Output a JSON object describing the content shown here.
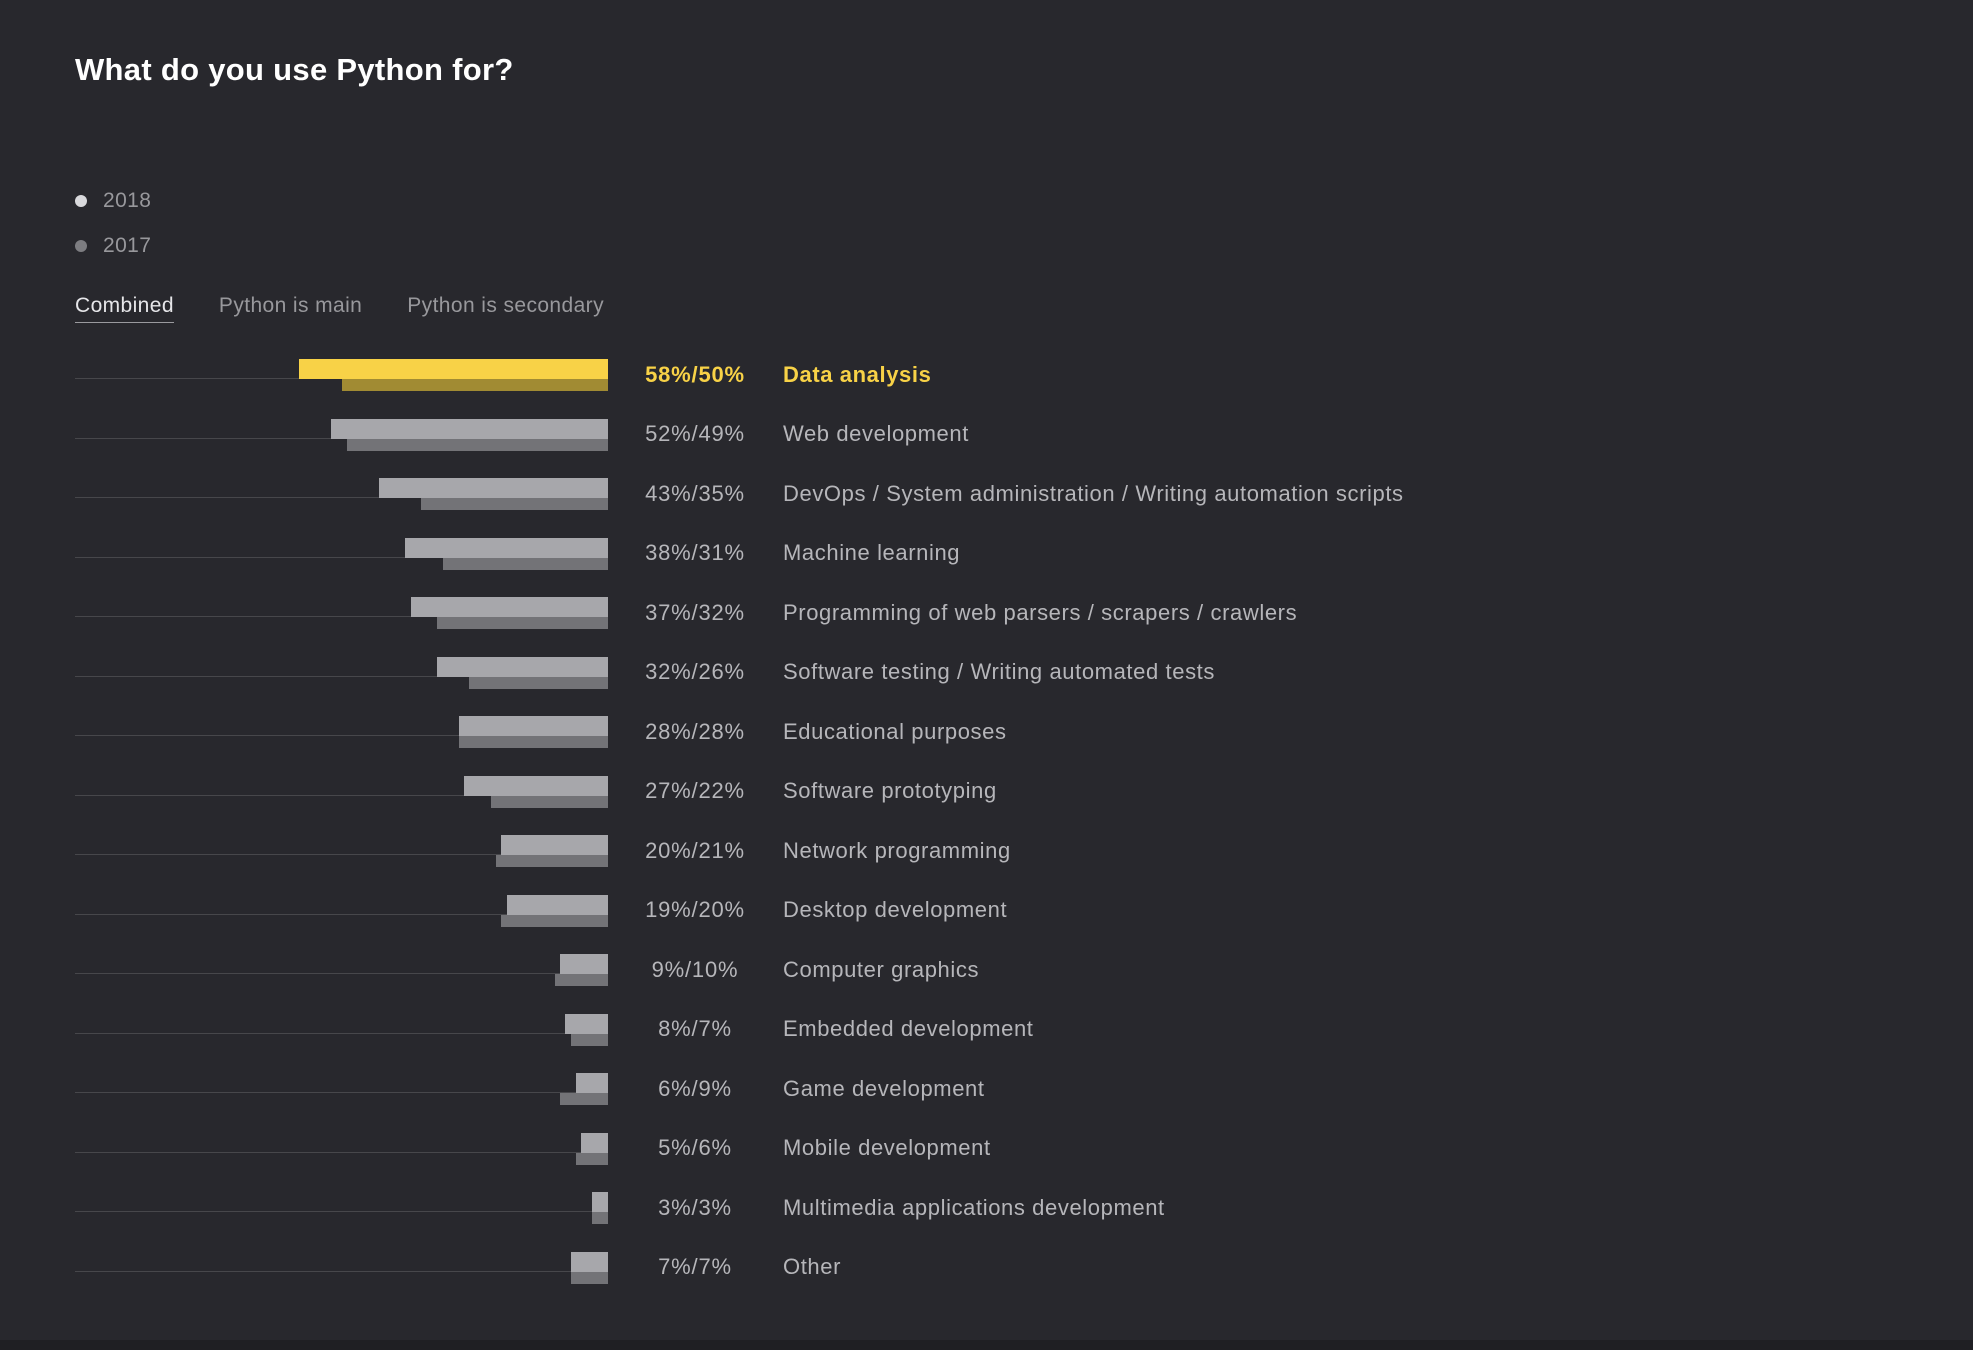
{
  "title": "What do you use Python for?",
  "colors": {
    "background": "#28282d",
    "accent_2018_highlight": "#f8d247",
    "accent_2017_highlight": "#a18b33",
    "bar_2018": "#a7a7ab",
    "bar_2017": "#737377",
    "track_line": "#47474b",
    "text_muted": "#98989c",
    "text_chart": "#b6b6ba",
    "title_text": "#ffffff"
  },
  "legend": [
    {
      "label": "2018",
      "dot_color": "#d9d9dc"
    },
    {
      "label": "2017",
      "dot_color": "#7d7d81"
    }
  ],
  "tabs": [
    {
      "label": "Combined",
      "active": true
    },
    {
      "label": "Python is main",
      "active": false
    },
    {
      "label": "Python is secondary",
      "active": false
    }
  ],
  "chart_data": {
    "type": "bar",
    "orientation": "horizontal-right-anchored",
    "series_names": [
      "2018",
      "2017"
    ],
    "xlim": [
      0,
      100
    ],
    "grid": false,
    "legend_position": "top-left",
    "rows": [
      {
        "label": "Data analysis",
        "value_2018": 58,
        "value_2017": 50,
        "display": "58%/50%",
        "highlight": true
      },
      {
        "label": "Web development",
        "value_2018": 52,
        "value_2017": 49,
        "display": "52%/49%",
        "highlight": false
      },
      {
        "label": "DevOps / System administration / Writing automation scripts",
        "value_2018": 43,
        "value_2017": 35,
        "display": "43%/35%",
        "highlight": false
      },
      {
        "label": "Machine learning",
        "value_2018": 38,
        "value_2017": 31,
        "display": "38%/31%",
        "highlight": false
      },
      {
        "label": "Programming of web parsers / scrapers / crawlers",
        "value_2018": 37,
        "value_2017": 32,
        "display": "37%/32%",
        "highlight": false
      },
      {
        "label": "Software testing / Writing automated tests",
        "value_2018": 32,
        "value_2017": 26,
        "display": "32%/26%",
        "highlight": false
      },
      {
        "label": "Educational purposes",
        "value_2018": 28,
        "value_2017": 28,
        "display": "28%/28%",
        "highlight": false
      },
      {
        "label": "Software prototyping",
        "value_2018": 27,
        "value_2017": 22,
        "display": "27%/22%",
        "highlight": false
      },
      {
        "label": "Network programming",
        "value_2018": 20,
        "value_2017": 21,
        "display": "20%/21%",
        "highlight": false
      },
      {
        "label": "Desktop development",
        "value_2018": 19,
        "value_2017": 20,
        "display": "19%/20%",
        "highlight": false
      },
      {
        "label": "Computer graphics",
        "value_2018": 9,
        "value_2017": 10,
        "display": "9%/10%",
        "highlight": false
      },
      {
        "label": "Embedded development",
        "value_2018": 8,
        "value_2017": 7,
        "display": "8%/7%",
        "highlight": false
      },
      {
        "label": "Game development",
        "value_2018": 6,
        "value_2017": 9,
        "display": "6%/9%",
        "highlight": false
      },
      {
        "label": "Mobile development",
        "value_2018": 5,
        "value_2017": 6,
        "display": "5%/6%",
        "highlight": false
      },
      {
        "label": "Multimedia applications development",
        "value_2018": 3,
        "value_2017": 3,
        "display": "3%/3%",
        "highlight": false
      },
      {
        "label": "Other",
        "value_2018": 7,
        "value_2017": 7,
        "display": "7%/7%",
        "highlight": false
      }
    ]
  }
}
